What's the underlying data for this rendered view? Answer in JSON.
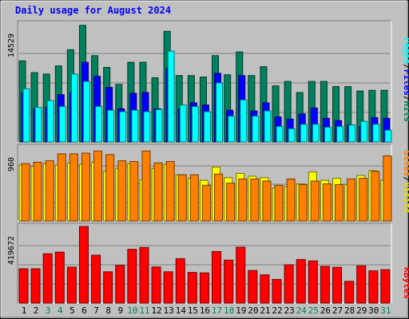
{
  "chart_data": [
    {
      "type": "bar",
      "panel": "top",
      "title": "Daily usage for August 2024",
      "categories": [
        "1",
        "2",
        "3",
        "4",
        "5",
        "6",
        "7",
        "8",
        "9",
        "10",
        "11",
        "12",
        "13",
        "14",
        "15",
        "16",
        "17",
        "18",
        "19",
        "20",
        "21",
        "22",
        "23",
        "24",
        "25",
        "26",
        "27",
        "28",
        "29",
        "30",
        "31"
      ],
      "ytick_label": "14529",
      "ylim": [
        0,
        16000
      ],
      "grid": true,
      "series": [
        {
          "name": "Hits",
          "color": "#00805c",
          "values": [
            11000,
            9400,
            9200,
            10300,
            12500,
            15800,
            11700,
            10100,
            7800,
            10800,
            10800,
            8700,
            15000,
            9000,
            9000,
            8800,
            11700,
            9100,
            12200,
            9000,
            10200,
            7600,
            8200,
            6700,
            8200,
            8200,
            7500,
            7500,
            6900,
            7000,
            7000
          ]
        },
        {
          "name": "Files",
          "color": "#0000ff",
          "values": [
            6700,
            4500,
            4700,
            6400,
            6700,
            10800,
            8900,
            7400,
            4500,
            6600,
            6700,
            4500,
            10000,
            4500,
            5300,
            5000,
            9300,
            4300,
            9000,
            4200,
            5300,
            3400,
            3100,
            3800,
            4600,
            3200,
            2900,
            2300,
            2100,
            3300,
            3200
          ]
        },
        {
          "name": "Pages",
          "color": "#00ffff",
          "values": [
            7200,
            4700,
            5600,
            4800,
            9200,
            8200,
            4800,
            4300,
            4100,
            4300,
            4100,
            4400,
            12300,
            5000,
            4800,
            4100,
            8000,
            3500,
            5700,
            3500,
            4200,
            2100,
            1800,
            2400,
            2400,
            2000,
            2100,
            2300,
            2800,
            2400,
            1600
          ]
        }
      ]
    },
    {
      "type": "bar",
      "panel": "middle",
      "categories": [
        "1",
        "2",
        "3",
        "4",
        "5",
        "6",
        "7",
        "8",
        "9",
        "10",
        "11",
        "12",
        "13",
        "14",
        "15",
        "16",
        "17",
        "18",
        "19",
        "20",
        "21",
        "22",
        "23",
        "24",
        "25",
        "26",
        "27",
        "28",
        "29",
        "30",
        "31"
      ],
      "ytick_label": "960",
      "ylim": [
        0,
        1050
      ],
      "grid": true,
      "series": [
        {
          "name": "Visits",
          "color": "#ffff00",
          "values": [
            800,
            780,
            820,
            800,
            830,
            810,
            840,
            710,
            750,
            820,
            590,
            750,
            810,
            660,
            610,
            580,
            770,
            620,
            680,
            640,
            620,
            470,
            490,
            530,
            700,
            580,
            610,
            520,
            650,
            720,
            580
          ]
        },
        {
          "name": "Sites",
          "color": "#ff8000",
          "values": [
            820,
            840,
            860,
            960,
            960,
            970,
            1000,
            950,
            860,
            850,
            1000,
            830,
            850,
            660,
            660,
            510,
            670,
            540,
            600,
            600,
            570,
            510,
            600,
            520,
            570,
            530,
            520,
            600,
            610,
            710,
            930
          ]
        }
      ]
    },
    {
      "type": "bar",
      "panel": "bottom",
      "categories": [
        "1",
        "2",
        "3",
        "4",
        "5",
        "6",
        "7",
        "8",
        "9",
        "10",
        "11",
        "12",
        "13",
        "14",
        "15",
        "16",
        "17",
        "18",
        "19",
        "20",
        "21",
        "22",
        "23",
        "24",
        "25",
        "26",
        "27",
        "28",
        "29",
        "30",
        "31"
      ],
      "ytick_label": "419672",
      "ylim": [
        0,
        480000
      ],
      "grid": true,
      "series": [
        {
          "name": "KBytes",
          "color": "#ff0000",
          "values": [
            215000,
            215000,
            309000,
            319000,
            225000,
            480000,
            300000,
            196000,
            236000,
            337000,
            348000,
            226000,
            196000,
            278000,
            192000,
            189000,
            323000,
            269000,
            350000,
            204000,
            177000,
            148000,
            240000,
            273000,
            264000,
            230000,
            224000,
            136000,
            233000,
            202000,
            209000
          ]
        }
      ]
    }
  ],
  "legend": {
    "top": [
      {
        "label": "Hits",
        "color": "#00805c"
      },
      {
        "label": "Files",
        "color": "#0000ff"
      },
      {
        "label": "Pages",
        "color": "#00ffff"
      }
    ],
    "middle": [
      {
        "label": "Visits",
        "color": "#ffff00"
      },
      {
        "label": "Sites",
        "color": "#ff8000"
      }
    ],
    "bottom": [
      {
        "label": "KBytes",
        "color": "#ff0000"
      }
    ],
    "separator": "/"
  },
  "weekend_days": [
    "3",
    "4",
    "10",
    "11",
    "17",
    "18",
    "24",
    "25",
    "31"
  ],
  "colors": {
    "background": "#c0c0c0",
    "panel_bg": "#c0c0c0",
    "title": "#0000ff",
    "grid": "#808080",
    "day_normal": "#000000",
    "day_weekend": "#00805c"
  }
}
